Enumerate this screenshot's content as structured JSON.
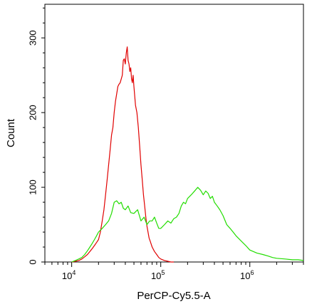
{
  "chart_data": {
    "type": "line",
    "title": "",
    "xlabel": "PerCP-Cy5.5-A",
    "ylabel": "Count",
    "x_scale": "log",
    "xlim": [
      5000,
      4000000
    ],
    "ylim": [
      0,
      345
    ],
    "x_ticks": [
      {
        "value": 10000,
        "base": "10",
        "exp": "4"
      },
      {
        "value": 100000,
        "base": "10",
        "exp": "5"
      },
      {
        "value": 1000000,
        "base": "10",
        "exp": "6"
      }
    ],
    "y_ticks": [
      {
        "value": 0,
        "label": "0"
      },
      {
        "value": 100,
        "label": "100"
      },
      {
        "value": 200,
        "label": "200"
      },
      {
        "value": 300,
        "label": "300"
      }
    ],
    "grid": false,
    "legend": "none",
    "series": [
      {
        "color": "#e00000",
        "x": [
          10000,
          11000,
          12000,
          13000,
          14000,
          15000,
          16000,
          17000,
          18000,
          19000,
          20000,
          21000,
          22000,
          23000,
          24000,
          25000,
          26000,
          27000,
          28000,
          29000,
          30000,
          31000,
          32000,
          33000,
          34000,
          35000,
          36000,
          37000,
          38000,
          39000,
          40000,
          41000,
          42000,
          43000,
          44000,
          45000,
          46000,
          47000,
          48000,
          49000,
          50000,
          52000,
          54000,
          56000,
          58000,
          60000,
          62000,
          64000,
          66000,
          68000,
          70000,
          72000,
          74000,
          76000,
          78000,
          80000,
          85000,
          90000,
          95000,
          100000,
          110000,
          120000,
          130000,
          140000
        ],
        "y": [
          0,
          1,
          2,
          4,
          7,
          10,
          14,
          18,
          22,
          26,
          30,
          40,
          55,
          70,
          90,
          110,
          130,
          150,
          170,
          180,
          200,
          215,
          225,
          235,
          238,
          240,
          245,
          250,
          270,
          272,
          265,
          280,
          288,
          270,
          265,
          255,
          260,
          245,
          240,
          250,
          235,
          210,
          200,
          180,
          155,
          130,
          110,
          90,
          75,
          60,
          48,
          40,
          32,
          28,
          24,
          20,
          14,
          10,
          6,
          4,
          2,
          1,
          0,
          0
        ]
      },
      {
        "color": "#22dd00",
        "x": [
          10000,
          11000,
          12000,
          13000,
          14000,
          15000,
          16000,
          17000,
          18000,
          19000,
          20000,
          22000,
          24000,
          26000,
          28000,
          30000,
          32000,
          34000,
          36000,
          38000,
          40000,
          43000,
          46000,
          50000,
          55000,
          60000,
          65000,
          70000,
          75000,
          80000,
          85000,
          90000,
          95000,
          100000,
          110000,
          120000,
          130000,
          140000,
          150000,
          160000,
          170000,
          180000,
          190000,
          200000,
          220000,
          240000,
          260000,
          280000,
          300000,
          320000,
          340000,
          360000,
          380000,
          400000,
          430000,
          460000,
          500000,
          550000,
          600000,
          650000,
          700000,
          800000,
          900000,
          1000000,
          1200000,
          1400000,
          1600000,
          1800000,
          2000000,
          2500000,
          3000000,
          3500000,
          4000000
        ],
        "y": [
          0,
          2,
          4,
          6,
          10,
          15,
          20,
          25,
          30,
          35,
          40,
          45,
          50,
          55,
          65,
          80,
          82,
          78,
          80,
          72,
          70,
          75,
          66,
          65,
          70,
          55,
          60,
          50,
          55,
          55,
          60,
          52,
          45,
          45,
          50,
          55,
          52,
          58,
          60,
          65,
          75,
          80,
          78,
          85,
          90,
          95,
          100,
          96,
          90,
          95,
          92,
          85,
          88,
          80,
          75,
          70,
          62,
          50,
          45,
          40,
          35,
          28,
          22,
          16,
          12,
          10,
          8,
          6,
          5,
          4,
          3,
          3,
          2
        ]
      }
    ]
  }
}
